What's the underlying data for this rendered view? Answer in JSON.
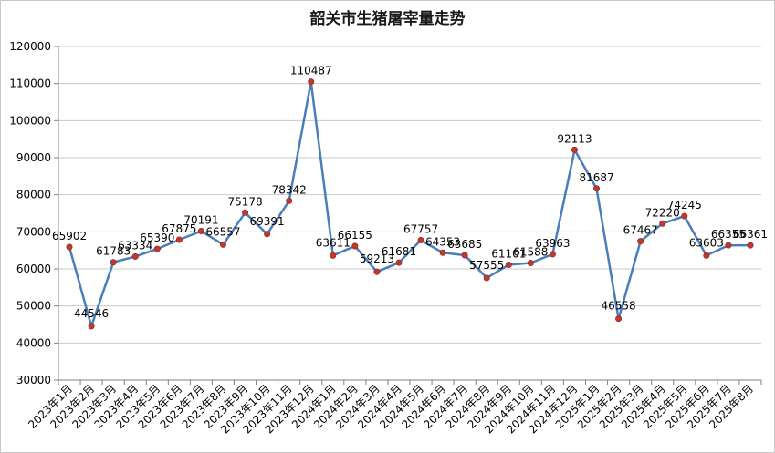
{
  "title": "韶关市生猪屠宰量走势",
  "chart_data": {
    "type": "line",
    "title": "韶关市生猪屠宰量走势",
    "xlabel": "",
    "ylabel": "",
    "ylim": [
      30000,
      120000
    ],
    "yticks": [
      30000,
      40000,
      50000,
      60000,
      70000,
      80000,
      90000,
      100000,
      110000,
      120000
    ],
    "grid": true,
    "legend": "none",
    "line_color": "#4a7ebb",
    "marker_color": "#c0392b",
    "categories": [
      "2023年1月",
      "2023年2月",
      "2023年3月",
      "2023年4月",
      "2023年5月",
      "2023年6月",
      "2023年7月",
      "2023年8月",
      "2023年9月",
      "2023年10月",
      "2023年11月",
      "2023年12月",
      "2024年1月",
      "2024年2月",
      "2024年3月",
      "2024年4月",
      "2024年5月",
      "2024年6月",
      "2024年7月",
      "2024年8月",
      "2024年9月",
      "2024年10月",
      "2024年11月",
      "2024年12月",
      "2025年1月",
      "2025年2月",
      "2025年3月",
      "2025年4月",
      "2025年5月",
      "2025年6月",
      "2025年7月",
      "2025年8月"
    ],
    "values": [
      65902,
      44546,
      61783,
      63334,
      65390,
      67875,
      70191,
      66557,
      75178,
      69391,
      78342,
      110487,
      63611,
      66155,
      59213,
      61681,
      67757,
      64353,
      63685,
      57555,
      61101,
      61588,
      63963,
      92113,
      81687,
      46558,
      67467,
      72220,
      74245,
      63603,
      66355,
      66361
    ]
  }
}
